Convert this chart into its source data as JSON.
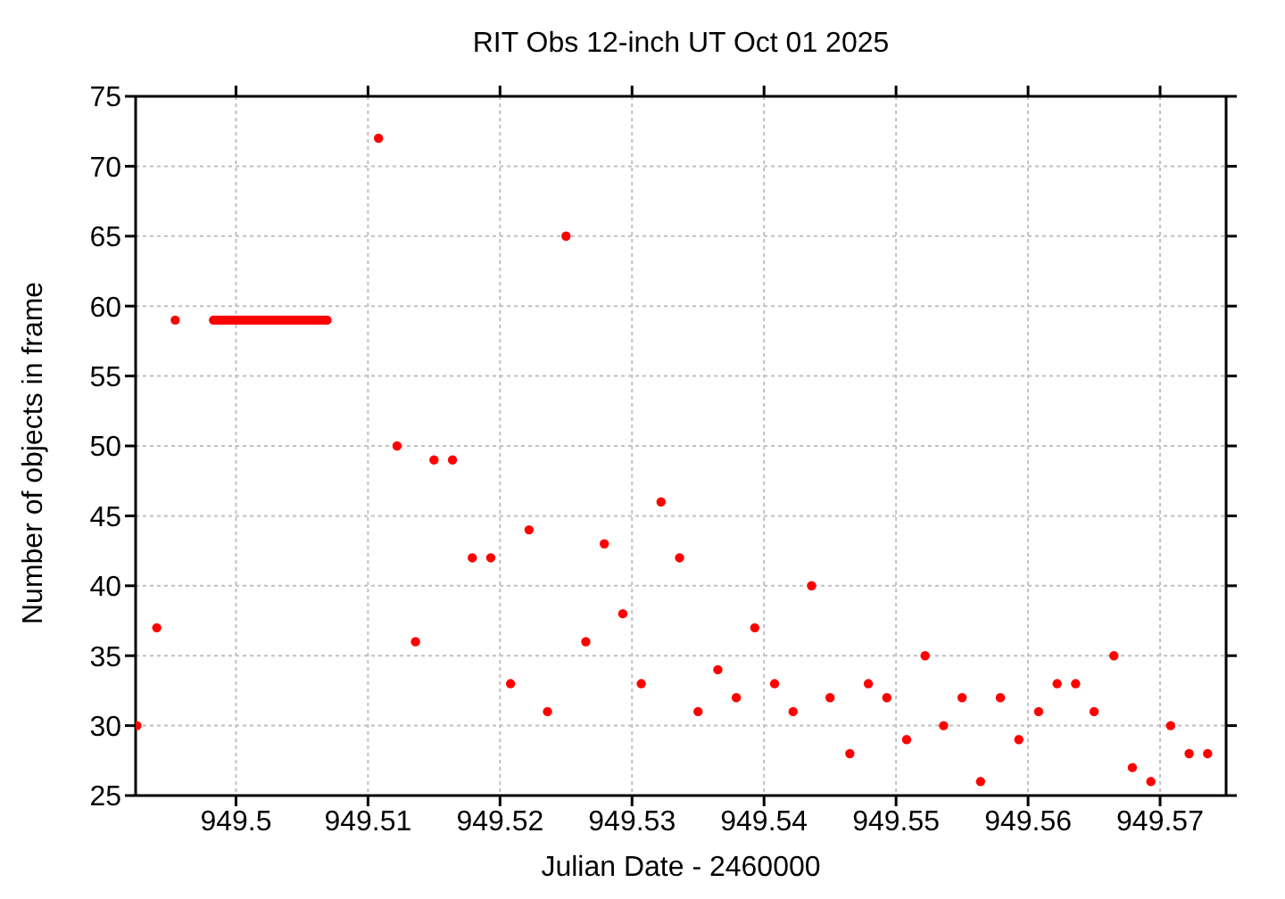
{
  "chart_data": {
    "type": "scatter",
    "title": "RIT Obs 12-inch UT Oct 01 2025",
    "xlabel": "Julian Date - 2460000",
    "ylabel": "Number of objects in frame",
    "x": [
      949.4925,
      949.494,
      949.4954,
      949.4983,
      949.4985,
      949.4987,
      949.4989,
      949.4991,
      949.4993,
      949.4995,
      949.4997,
      949.4999,
      949.5001,
      949.5003,
      949.5005,
      949.5007,
      949.5009,
      949.5011,
      949.5013,
      949.5015,
      949.5017,
      949.5019,
      949.5021,
      949.5023,
      949.5025,
      949.5027,
      949.5029,
      949.5031,
      949.5033,
      949.5035,
      949.5037,
      949.5039,
      949.5041,
      949.5043,
      949.5045,
      949.5047,
      949.5049,
      949.5051,
      949.5053,
      949.5055,
      949.5057,
      949.5059,
      949.5061,
      949.5063,
      949.5065,
      949.5067,
      949.5069,
      949.5108,
      949.5122,
      949.5136,
      949.515,
      949.5164,
      949.5179,
      949.5193,
      949.5208,
      949.5222,
      949.5236,
      949.525,
      949.5265,
      949.5279,
      949.5293,
      949.5307,
      949.5322,
      949.5336,
      949.535,
      949.5365,
      949.5379,
      949.5393,
      949.5408,
      949.5422,
      949.5436,
      949.545,
      949.5465,
      949.5479,
      949.5493,
      949.5508,
      949.5522,
      949.5536,
      949.555,
      949.5564,
      949.5579,
      949.5593,
      949.5608,
      949.5622,
      949.5636,
      949.565,
      949.5665,
      949.5679,
      949.5693,
      949.5708,
      949.5722,
      949.5736
    ],
    "series": [
      {
        "color": "#ff0000",
        "values": [
          30,
          37,
          59,
          59,
          59,
          59,
          59,
          59,
          59,
          59,
          59,
          59,
          59,
          59,
          59,
          59,
          59,
          59,
          59,
          59,
          59,
          59,
          59,
          59,
          59,
          59,
          59,
          59,
          59,
          59,
          59,
          59,
          59,
          59,
          59,
          59,
          59,
          59,
          59,
          59,
          59,
          59,
          59,
          59,
          59,
          59,
          59,
          72,
          50,
          36,
          49,
          49,
          42,
          42,
          33,
          44,
          31,
          65,
          36,
          43,
          38,
          33,
          46,
          42,
          31,
          34,
          32,
          37,
          33,
          31,
          40,
          32,
          28,
          33,
          32,
          29,
          35,
          30,
          32,
          26,
          32,
          29,
          31,
          33,
          33,
          31,
          35,
          27,
          26,
          30,
          28,
          28
        ]
      }
    ],
    "xlim": [
      949.4924,
      949.575
    ],
    "xticks": [
      949.5,
      949.51,
      949.52,
      949.53,
      949.54,
      949.55,
      949.56,
      949.57
    ],
    "ylim": [
      25,
      75
    ],
    "yticks": [
      25,
      30,
      35,
      40,
      45,
      50,
      55,
      60,
      65,
      70,
      75
    ],
    "grid": true,
    "legend": false,
    "marker": "circle"
  }
}
